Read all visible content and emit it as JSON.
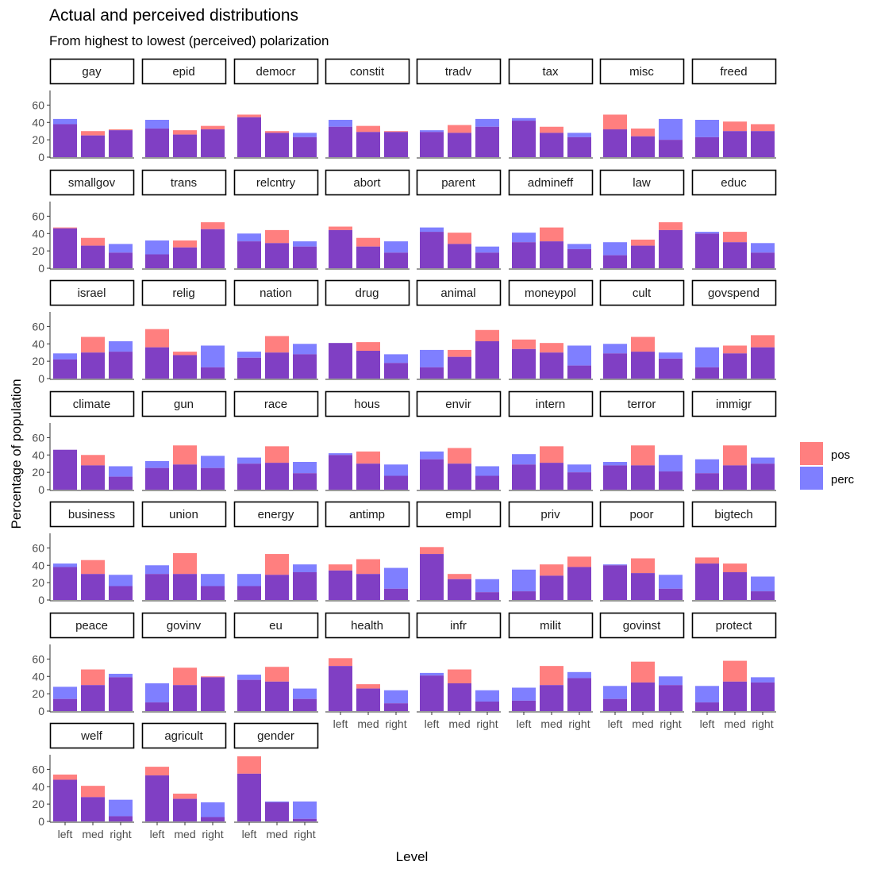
{
  "chart_data": {
    "type": "bar",
    "title": "Actual and perceived distributions",
    "subtitle": "From highest to lowest (perceived) polarization",
    "xlabel": "Level",
    "ylabel": "Percentage of population",
    "categories": [
      "left",
      "med",
      "right"
    ],
    "yticks": [
      0,
      20,
      40,
      60
    ],
    "ylim": [
      0,
      75
    ],
    "legend": {
      "position": "right",
      "items": [
        {
          "name": "pos",
          "color": "#ff7f7f"
        },
        {
          "name": "perc",
          "color": "#7f7fff"
        }
      ]
    },
    "colors": {
      "pos": "#ff7f7f",
      "perc": "#7f7fff",
      "overlap": "#803fc4"
    },
    "series_names": [
      "pos",
      "perc"
    ],
    "panels": [
      {
        "name": "gay",
        "pos": [
          38,
          30,
          32
        ],
        "perc": [
          44,
          25,
          31
        ]
      },
      {
        "name": "epid",
        "pos": [
          33,
          31,
          36
        ],
        "perc": [
          43,
          26,
          32
        ]
      },
      {
        "name": "democr",
        "pos": [
          49,
          30,
          23
        ],
        "perc": [
          46,
          28,
          28
        ]
      },
      {
        "name": "constit",
        "pos": [
          35,
          36,
          30
        ],
        "perc": [
          43,
          29,
          29
        ]
      },
      {
        "name": "tradv",
        "pos": [
          29,
          37,
          35
        ],
        "perc": [
          31,
          28,
          44
        ]
      },
      {
        "name": "tax",
        "pos": [
          42,
          35,
          23
        ],
        "perc": [
          45,
          28,
          28
        ]
      },
      {
        "name": "misc",
        "pos": [
          49,
          33,
          20
        ],
        "perc": [
          32,
          24,
          44
        ]
      },
      {
        "name": "freed",
        "pos": [
          23,
          41,
          38
        ],
        "perc": [
          43,
          30,
          30
        ]
      },
      {
        "name": "smallgov",
        "pos": [
          47,
          35,
          18
        ],
        "perc": [
          46,
          26,
          28
        ]
      },
      {
        "name": "trans",
        "pos": [
          16,
          32,
          53
        ],
        "perc": [
          32,
          24,
          45
        ]
      },
      {
        "name": "relcntry",
        "pos": [
          31,
          44,
          25
        ],
        "perc": [
          40,
          29,
          31
        ]
      },
      {
        "name": "abort",
        "pos": [
          48,
          35,
          18
        ],
        "perc": [
          44,
          25,
          31
        ]
      },
      {
        "name": "parent",
        "pos": [
          42,
          41,
          18
        ],
        "perc": [
          47,
          28,
          25
        ]
      },
      {
        "name": "admineff",
        "pos": [
          30,
          47,
          22
        ],
        "perc": [
          41,
          31,
          28
        ]
      },
      {
        "name": "law",
        "pos": [
          15,
          33,
          53
        ],
        "perc": [
          30,
          26,
          44
        ]
      },
      {
        "name": "educ",
        "pos": [
          40,
          42,
          18
        ],
        "perc": [
          42,
          30,
          29
        ]
      },
      {
        "name": "israel",
        "pos": [
          22,
          48,
          31
        ],
        "perc": [
          29,
          30,
          43
        ]
      },
      {
        "name": "relig",
        "pos": [
          57,
          31,
          13
        ],
        "perc": [
          36,
          27,
          38
        ]
      },
      {
        "name": "nation",
        "pos": [
          24,
          49,
          28
        ],
        "perc": [
          31,
          30,
          40
        ]
      },
      {
        "name": "drug",
        "pos": [
          41,
          42,
          18
        ],
        "perc": [
          41,
          32,
          28
        ]
      },
      {
        "name": "animal",
        "pos": [
          13,
          33,
          56
        ],
        "perc": [
          33,
          25,
          43
        ]
      },
      {
        "name": "moneypol",
        "pos": [
          45,
          41,
          15
        ],
        "perc": [
          34,
          30,
          38
        ]
      },
      {
        "name": "cult",
        "pos": [
          29,
          48,
          23
        ],
        "perc": [
          40,
          31,
          30
        ]
      },
      {
        "name": "govspend",
        "pos": [
          13,
          38,
          50
        ],
        "perc": [
          36,
          29,
          36
        ]
      },
      {
        "name": "climate",
        "pos": [
          46,
          40,
          15
        ],
        "perc": [
          46,
          28,
          27
        ]
      },
      {
        "name": "gun",
        "pos": [
          25,
          51,
          25
        ],
        "perc": [
          33,
          29,
          39
        ]
      },
      {
        "name": "race",
        "pos": [
          30,
          50,
          19
        ],
        "perc": [
          37,
          31,
          32
        ]
      },
      {
        "name": "hous",
        "pos": [
          40,
          44,
          16
        ],
        "perc": [
          42,
          30,
          29
        ]
      },
      {
        "name": "envir",
        "pos": [
          35,
          48,
          16
        ],
        "perc": [
          44,
          30,
          27
        ]
      },
      {
        "name": "intern",
        "pos": [
          29,
          50,
          20
        ],
        "perc": [
          41,
          31,
          29
        ]
      },
      {
        "name": "terror",
        "pos": [
          28,
          51,
          21
        ],
        "perc": [
          32,
          28,
          40
        ]
      },
      {
        "name": "immigr",
        "pos": [
          19,
          51,
          30
        ],
        "perc": [
          35,
          28,
          37
        ]
      },
      {
        "name": "business",
        "pos": [
          38,
          46,
          16
        ],
        "perc": [
          42,
          30,
          29
        ]
      },
      {
        "name": "union",
        "pos": [
          30,
          54,
          16
        ],
        "perc": [
          40,
          30,
          30
        ]
      },
      {
        "name": "energy",
        "pos": [
          16,
          53,
          32
        ],
        "perc": [
          30,
          29,
          41
        ]
      },
      {
        "name": "antimp",
        "pos": [
          41,
          47,
          13
        ],
        "perc": [
          34,
          30,
          37
        ]
      },
      {
        "name": "empl",
        "pos": [
          61,
          30,
          9
        ],
        "perc": [
          53,
          24,
          24
        ]
      },
      {
        "name": "priv",
        "pos": [
          10,
          41,
          50
        ],
        "perc": [
          35,
          28,
          38
        ]
      },
      {
        "name": "poor",
        "pos": [
          40,
          48,
          13
        ],
        "perc": [
          41,
          31,
          29
        ]
      },
      {
        "name": "bigtech",
        "pos": [
          49,
          42,
          10
        ],
        "perc": [
          42,
          32,
          27
        ]
      },
      {
        "name": "peace",
        "pos": [
          14,
          48,
          39
        ],
        "perc": [
          28,
          30,
          43
        ]
      },
      {
        "name": "govinv",
        "pos": [
          10,
          50,
          40
        ],
        "perc": [
          32,
          30,
          39
        ]
      },
      {
        "name": "eu",
        "pos": [
          36,
          51,
          14
        ],
        "perc": [
          42,
          34,
          26
        ]
      },
      {
        "name": "health",
        "pos": [
          61,
          31,
          9
        ],
        "perc": [
          52,
          26,
          24
        ]
      },
      {
        "name": "infr",
        "pos": [
          41,
          48,
          11
        ],
        "perc": [
          44,
          32,
          24
        ]
      },
      {
        "name": "milit",
        "pos": [
          12,
          52,
          38
        ],
        "perc": [
          27,
          30,
          45
        ]
      },
      {
        "name": "govinst",
        "pos": [
          14,
          57,
          30
        ],
        "perc": [
          29,
          33,
          40
        ]
      },
      {
        "name": "protect",
        "pos": [
          10,
          58,
          33
        ],
        "perc": [
          29,
          34,
          39
        ]
      },
      {
        "name": "welf",
        "pos": [
          54,
          41,
          6
        ],
        "perc": [
          48,
          28,
          25
        ]
      },
      {
        "name": "agricult",
        "pos": [
          63,
          32,
          5
        ],
        "perc": [
          53,
          26,
          22
        ]
      },
      {
        "name": "gender",
        "pos": [
          75,
          22,
          3
        ],
        "perc": [
          55,
          23,
          23
        ]
      }
    ]
  }
}
